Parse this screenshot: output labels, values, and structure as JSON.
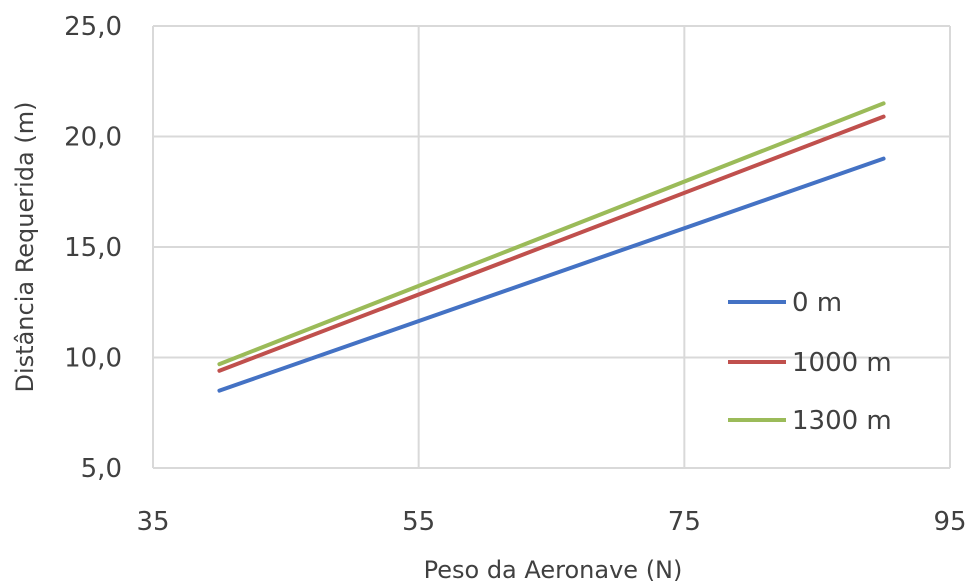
{
  "chart_data": {
    "type": "line",
    "xlabel": "Peso da Aeronave (N)",
    "ylabel": "Distância Requerida (m)",
    "xlim": [
      35,
      95
    ],
    "ylim": [
      5,
      25
    ],
    "xticks": [
      35,
      55,
      75,
      95
    ],
    "xtick_labels": [
      "35",
      "55",
      "75",
      "95"
    ],
    "yticks": [
      5,
      10,
      15,
      20,
      25
    ],
    "ytick_labels": [
      "5,0",
      "10,0",
      "15,0",
      "20,0",
      "25,0"
    ],
    "grid": true,
    "legend_position": "right",
    "series": [
      {
        "name": "0 m",
        "color": "#4472C4",
        "x": [
          40,
          90
        ],
        "y": [
          8.5,
          19.0
        ]
      },
      {
        "name": "1000 m",
        "color": "#C0504D",
        "x": [
          40,
          90
        ],
        "y": [
          9.4,
          20.9
        ]
      },
      {
        "name": "1300 m",
        "color": "#9BBB59",
        "x": [
          40,
          90
        ],
        "y": [
          9.7,
          21.5
        ]
      }
    ]
  }
}
